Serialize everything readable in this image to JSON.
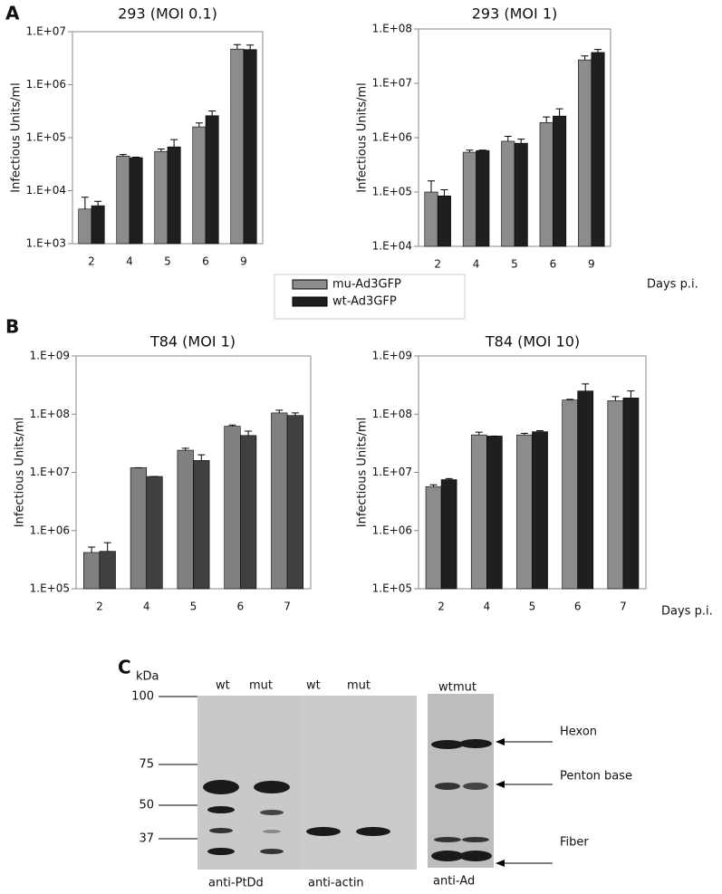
{
  "panels": [
    "A",
    "B",
    "C"
  ],
  "chart_data": [
    {
      "type": "bar",
      "title": "293 (MOI  0.1)",
      "ylabel": "Infectious Units/ml",
      "log_scale": true,
      "categories": [
        "2",
        "4",
        "5",
        "6",
        "9"
      ],
      "series": [
        {
          "name": "mu-Ad3GFP",
          "color": "#8c8c8c",
          "values": [
            4500,
            45000,
            55000,
            160000,
            4700000
          ],
          "error": [
            3000,
            3000,
            6000,
            30000,
            1000000
          ]
        },
        {
          "name": "wt-Ad3GFP",
          "color": "#1f1f1f",
          "values": [
            5200,
            42000,
            67000,
            260000,
            4600000
          ],
          "error": [
            1100,
            1000,
            25000,
            60000,
            1000000
          ]
        }
      ],
      "ylim": [
        1000,
        10000000
      ],
      "yticks": [
        {
          "value": 1000,
          "label": "1.E+03"
        },
        {
          "value": 10000,
          "label": "1.E+04"
        },
        {
          "value": 100000,
          "label": "1.E+05"
        },
        {
          "value": 1000000,
          "label": "1.E+06"
        },
        {
          "value": 10000000,
          "label": "1.E+07"
        }
      ]
    },
    {
      "type": "bar",
      "title": "293 (MOI 1)",
      "ylabel": "Infectious Units/ml",
      "xlabel": "Days p.i.",
      "log_scale": true,
      "categories": [
        "2",
        "4",
        "5",
        "6",
        "9"
      ],
      "series": [
        {
          "color": "#8c8c8c",
          "values": [
            100000,
            540000,
            860000,
            1900000,
            27000000
          ],
          "error": [
            60000,
            50000,
            200000,
            500000,
            5000000
          ]
        },
        {
          "color": "#1f1f1f",
          "values": [
            85000,
            580000,
            790000,
            2500000,
            37000000
          ],
          "error": [
            25000,
            10000,
            150000,
            900000,
            5000000
          ]
        }
      ],
      "ylim": [
        10000,
        100000000
      ],
      "yticks": [
        {
          "value": 10000,
          "label": "1.E+04"
        },
        {
          "value": 100000,
          "label": "1.E+05"
        },
        {
          "value": 1000000,
          "label": "1.E+06"
        },
        {
          "value": 10000000,
          "label": "1.E+07"
        },
        {
          "value": 100000000,
          "label": "1.E+08"
        }
      ]
    },
    {
      "type": "bar",
      "title": "T84 (MOI 1)",
      "ylabel": "Infectious Units/ml",
      "log_scale": true,
      "categories": [
        "2",
        "4",
        "5",
        "6",
        "7"
      ],
      "series": [
        {
          "color": "#808080",
          "values": [
            420000,
            12000000,
            24000000,
            62000000,
            105000000
          ],
          "error": [
            100000,
            0,
            2000000,
            3000000,
            12000000
          ]
        },
        {
          "color": "#404040",
          "values": [
            440000,
            8500000,
            16000000,
            43000000,
            95000000
          ],
          "error": [
            180000,
            0,
            4000000,
            8000000,
            10000000
          ]
        }
      ],
      "ylim": [
        100000,
        1000000000
      ],
      "yticks": [
        {
          "value": 100000,
          "label": "1.E+05"
        },
        {
          "value": 1000000,
          "label": "1.E+06"
        },
        {
          "value": 10000000,
          "label": "1.E+07"
        },
        {
          "value": 100000000,
          "label": "1.E+08"
        },
        {
          "value": 1000000000,
          "label": "1.E+09"
        }
      ]
    },
    {
      "type": "bar",
      "title": "T84 (MOI 10)",
      "ylabel": "Infectious Units/ml",
      "xlabel": "Days p.i.",
      "log_scale": true,
      "categories": [
        "2",
        "4",
        "5",
        "6",
        "7"
      ],
      "series": [
        {
          "color": "#8c8c8c",
          "values": [
            5700000,
            44000000,
            44000000,
            175000000,
            170000000
          ],
          "error": [
            400000,
            5000000,
            3000000,
            5000000,
            30000000
          ]
        },
        {
          "color": "#1f1f1f",
          "values": [
            7500000,
            42000000,
            50000000,
            250000000,
            190000000
          ],
          "error": [
            300000,
            0,
            2000000,
            80000000,
            60000000
          ]
        }
      ],
      "ylim": [
        100000,
        1000000000
      ],
      "yticks": [
        {
          "value": 100000,
          "label": "1.E+05"
        },
        {
          "value": 1000000,
          "label": "1.E+06"
        },
        {
          "value": 10000000,
          "label": "1.E+07"
        },
        {
          "value": 100000000,
          "label": "1.E+08"
        },
        {
          "value": 1000000000,
          "label": "1.E+09"
        }
      ]
    }
  ],
  "blot": {
    "unit": "kDa",
    "markers": [
      "100",
      "75",
      "50",
      "37"
    ],
    "lanes": [
      [
        "wt",
        "mut"
      ],
      [
        "wt",
        "mut"
      ],
      [
        "wt",
        "mut"
      ]
    ],
    "antibodies": [
      "anti-PtDd",
      "anti-actin",
      "anti-Ad"
    ],
    "bands": [
      "Hexon",
      "Penton base",
      "Fiber"
    ]
  }
}
